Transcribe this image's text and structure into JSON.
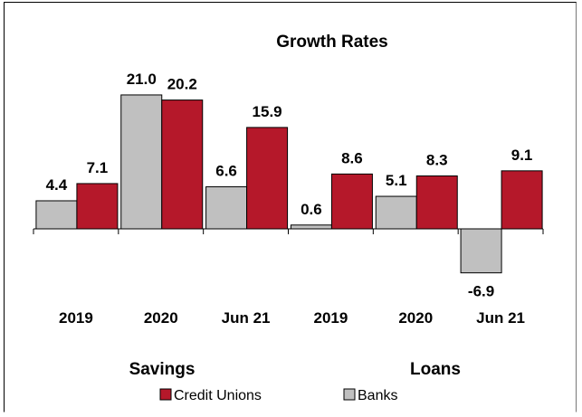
{
  "chart_data": {
    "type": "bar",
    "title": "Growth Rates",
    "categories": [
      "2019",
      "2020",
      "Jun 21",
      "2019",
      "2020",
      "Jun 21"
    ],
    "groups": [
      {
        "label": "Savings",
        "categories": [
          "2019",
          "2020",
          "Jun 21"
        ]
      },
      {
        "label": "Loans",
        "categories": [
          "2019",
          "2020",
          "Jun 21"
        ]
      }
    ],
    "series": [
      {
        "name": "Banks",
        "color": "#c0c0c0",
        "values": [
          4.4,
          21.0,
          6.6,
          0.6,
          5.1,
          -6.9
        ],
        "labels": [
          "4.4",
          "21.0",
          "6.6",
          "0.6",
          "5.1",
          "-6.9"
        ]
      },
      {
        "name": "Credit Unions",
        "color": "#b5182a",
        "values": [
          7.1,
          20.2,
          15.9,
          8.6,
          8.3,
          9.1
        ],
        "labels": [
          "7.1",
          "20.2",
          "15.9",
          "8.6",
          "8.3",
          "9.1"
        ]
      }
    ],
    "legend": [
      "Credit Unions",
      "Banks"
    ],
    "legend_position": "bottom",
    "ylim": [
      -7,
      21
    ],
    "grid": false
  }
}
